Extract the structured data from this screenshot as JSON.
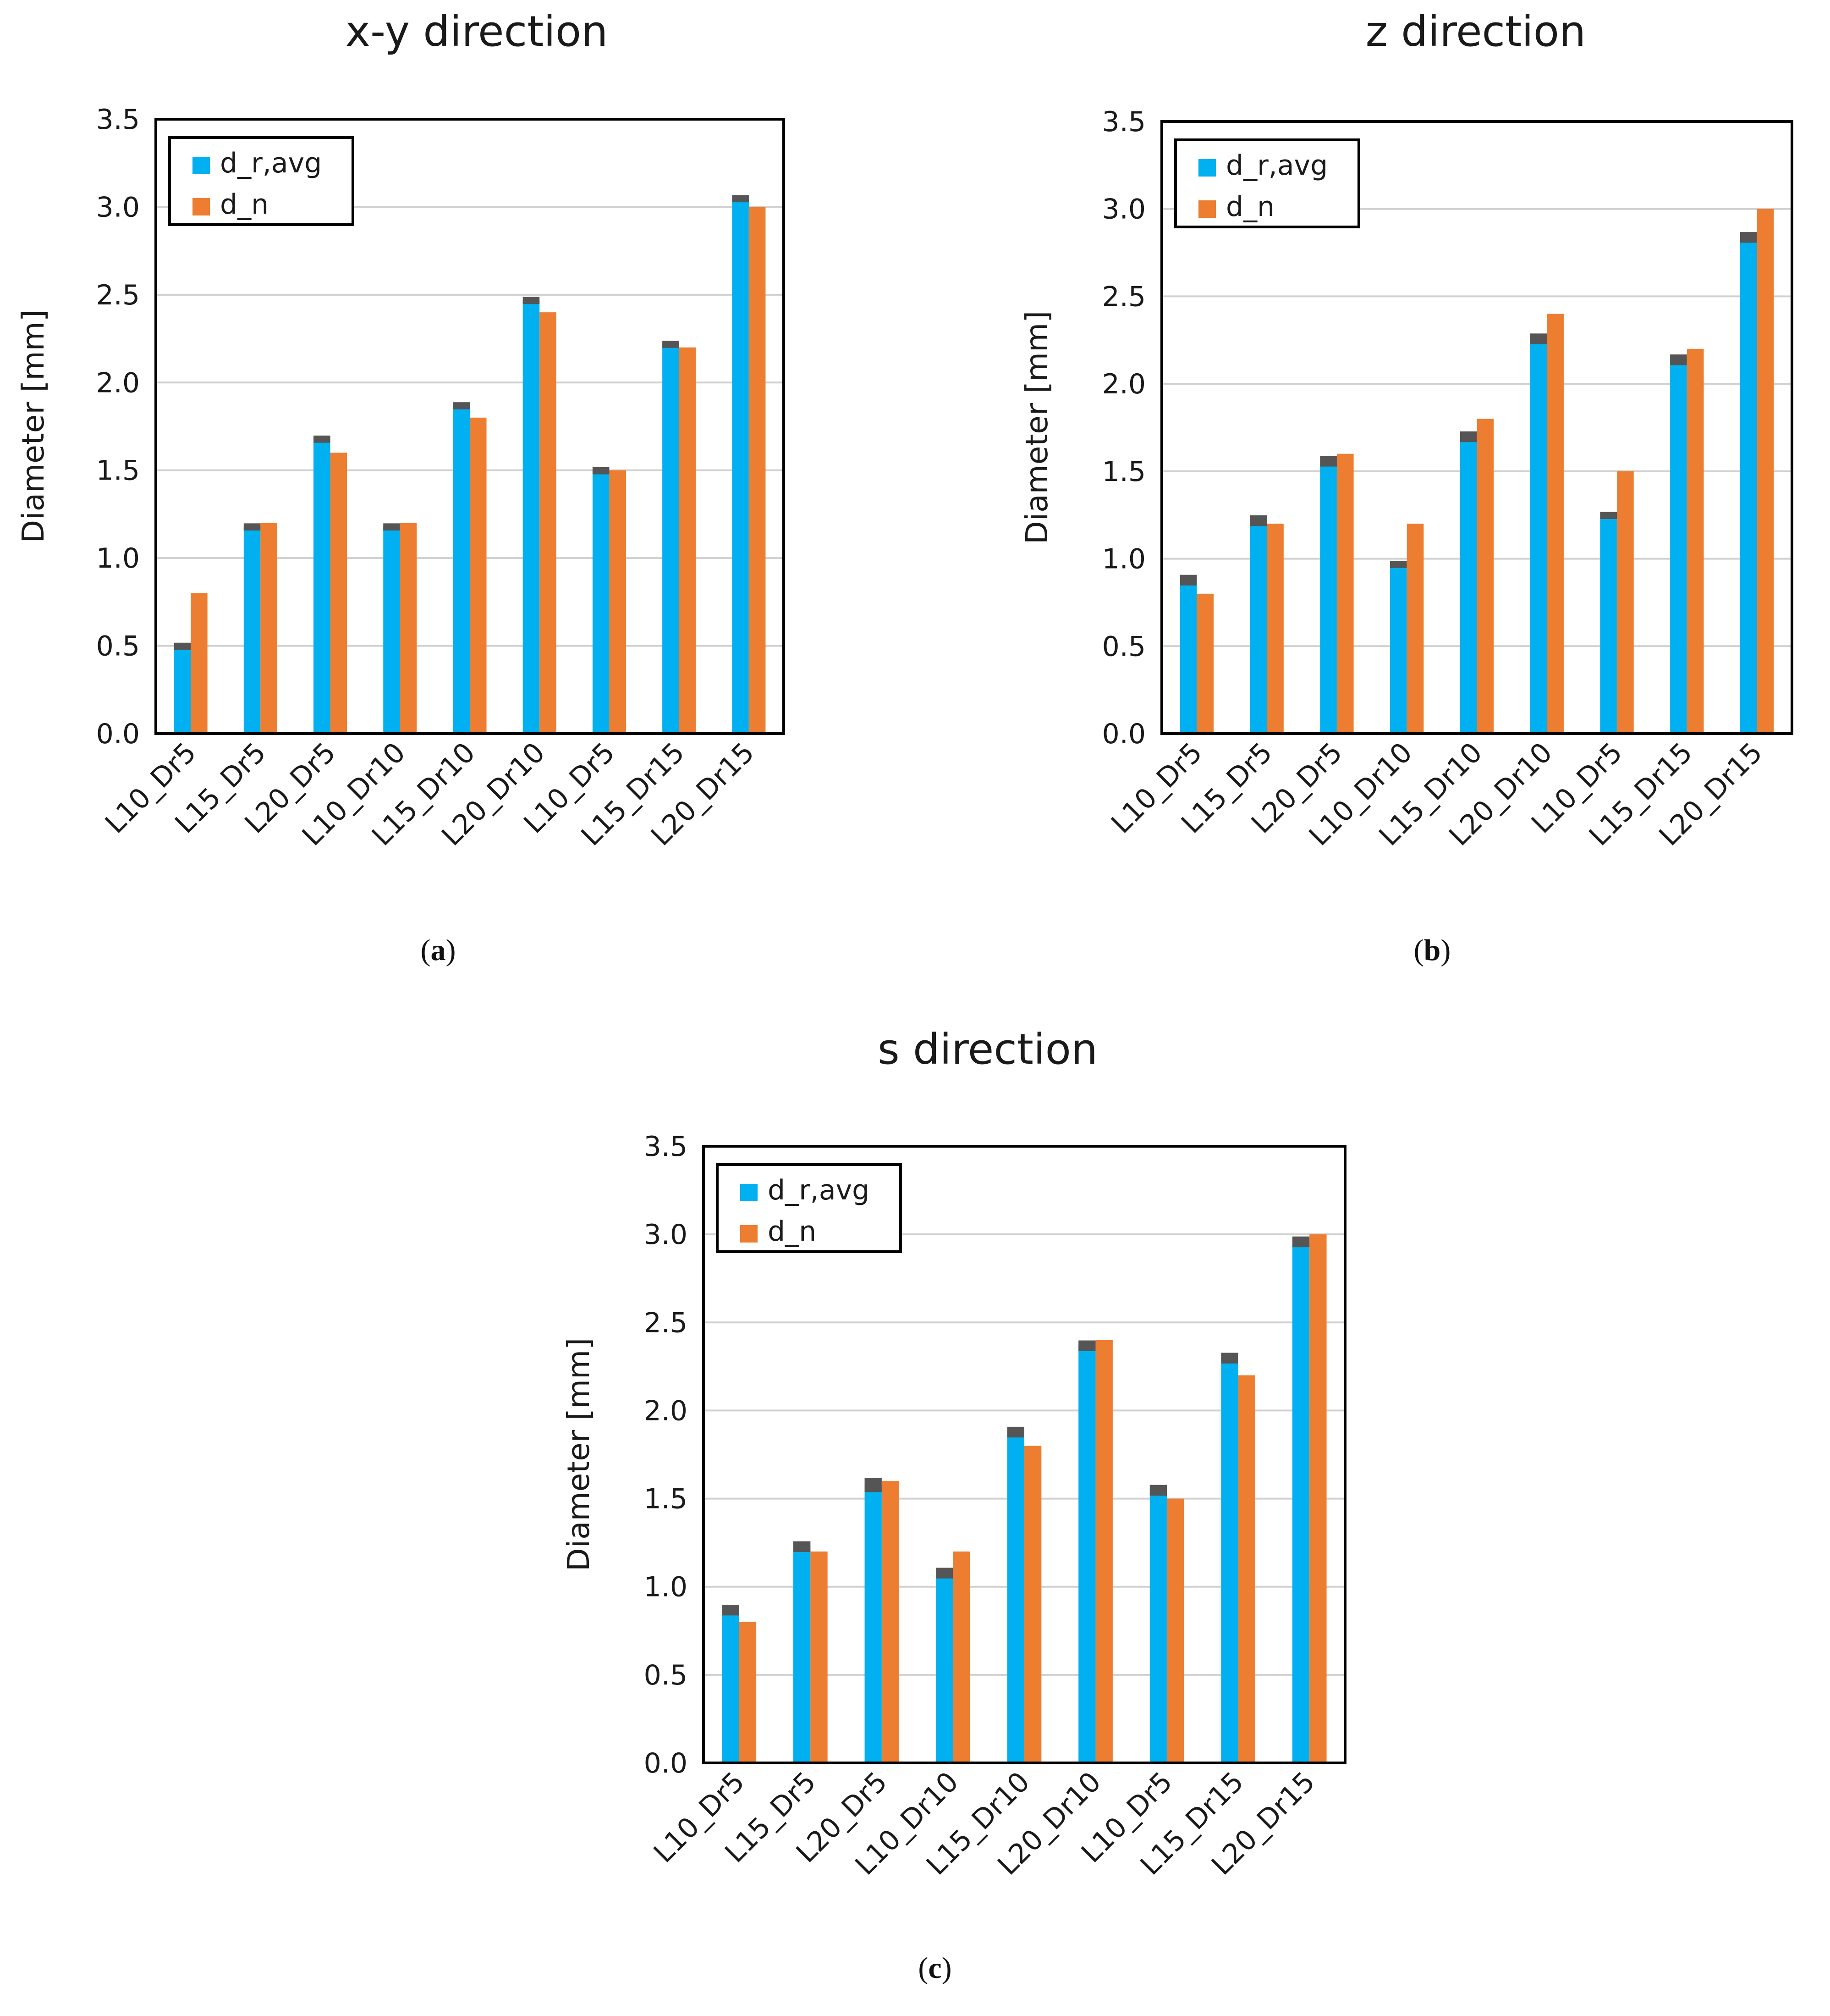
{
  "colors": {
    "dr": "#00b0f0",
    "dn": "#ed7d31",
    "err": "#555555",
    "grid": "#d0d0d0",
    "axis": "#000000"
  },
  "captions": [
    {
      "open": "(",
      "letter": "a",
      "close": ")"
    },
    {
      "open": "(",
      "letter": "b",
      "close": ")"
    },
    {
      "open": "(",
      "letter": "c",
      "close": ")"
    }
  ],
  "chart_data": [
    {
      "type": "bar",
      "title": "x-y direction",
      "ylabel": "Diameter [mm]",
      "xlabel": "",
      "ylim": [
        0,
        3.5
      ],
      "yticks": [
        "0.0",
        "0.5",
        "1.0",
        "1.5",
        "2.0",
        "2.5",
        "3.0",
        "3.5"
      ],
      "grid": true,
      "legend": "top-left",
      "categories": [
        "L10_Dr5",
        "L15_Dr5",
        "L20_Dr5",
        "L10_Dr10",
        "L15_Dr10",
        "L20_Dr10",
        "L10_Dr5",
        "L15_Dr15",
        "L20_Dr15"
      ],
      "series": [
        {
          "name": "d_r,avg",
          "values": [
            0.5,
            1.18,
            1.68,
            1.18,
            1.87,
            2.47,
            1.5,
            2.22,
            3.05
          ],
          "errors": [
            0.01,
            0.01,
            0.01,
            0.01,
            0.01,
            0.01,
            0.01,
            0.01,
            0.01
          ]
        },
        {
          "name": "d_n",
          "values": [
            0.8,
            1.2,
            1.6,
            1.2,
            1.8,
            2.4,
            1.5,
            2.2,
            3.0
          ]
        }
      ]
    },
    {
      "type": "bar",
      "title": "z direction",
      "ylabel": "Diameter [mm]",
      "xlabel": "",
      "ylim": [
        0,
        3.5
      ],
      "yticks": [
        "0.0",
        "0.5",
        "1.0",
        "1.5",
        "2.0",
        "2.5",
        "3.0",
        "3.5"
      ],
      "grid": true,
      "legend": "top-left",
      "categories": [
        "L10_Dr5",
        "L15_Dr5",
        "L20_Dr5",
        "L10_Dr10",
        "L15_Dr10",
        "L20_Dr10",
        "L10_Dr5",
        "L15_Dr15",
        "L20_Dr15"
      ],
      "series": [
        {
          "name": "d_r,avg",
          "values": [
            0.88,
            1.22,
            1.56,
            0.97,
            1.7,
            2.26,
            1.25,
            2.14,
            2.84
          ],
          "errors": [
            0.02,
            0.02,
            0.02,
            0.01,
            0.02,
            0.02,
            0.01,
            0.02,
            0.02
          ]
        },
        {
          "name": "d_n",
          "values": [
            0.8,
            1.2,
            1.6,
            1.2,
            1.8,
            2.4,
            1.5,
            2.2,
            3.0
          ]
        }
      ]
    },
    {
      "type": "bar",
      "title": "s direction",
      "ylabel": "Diameter [mm]",
      "xlabel": "",
      "ylim": [
        0,
        3.5
      ],
      "yticks": [
        "0.0",
        "0.5",
        "1.0",
        "1.5",
        "2.0",
        "2.5",
        "3.0",
        "3.5"
      ],
      "grid": true,
      "legend": "top-left",
      "categories": [
        "L10_Dr5",
        "L15_Dr5",
        "L20_Dr5",
        "L10_Dr10",
        "L15_Dr10",
        "L20_Dr10",
        "L10_Dr5",
        "L15_Dr15",
        "L20_Dr15"
      ],
      "series": [
        {
          "name": "d_r,avg",
          "values": [
            0.87,
            1.23,
            1.58,
            1.08,
            1.88,
            2.37,
            1.55,
            2.3,
            2.96
          ],
          "errors": [
            0.02,
            0.02,
            0.03,
            0.02,
            0.02,
            0.02,
            0.02,
            0.02,
            0.02
          ]
        },
        {
          "name": "d_n",
          "values": [
            0.8,
            1.2,
            1.6,
            1.2,
            1.8,
            2.4,
            1.5,
            2.2,
            3.0
          ]
        }
      ]
    }
  ]
}
